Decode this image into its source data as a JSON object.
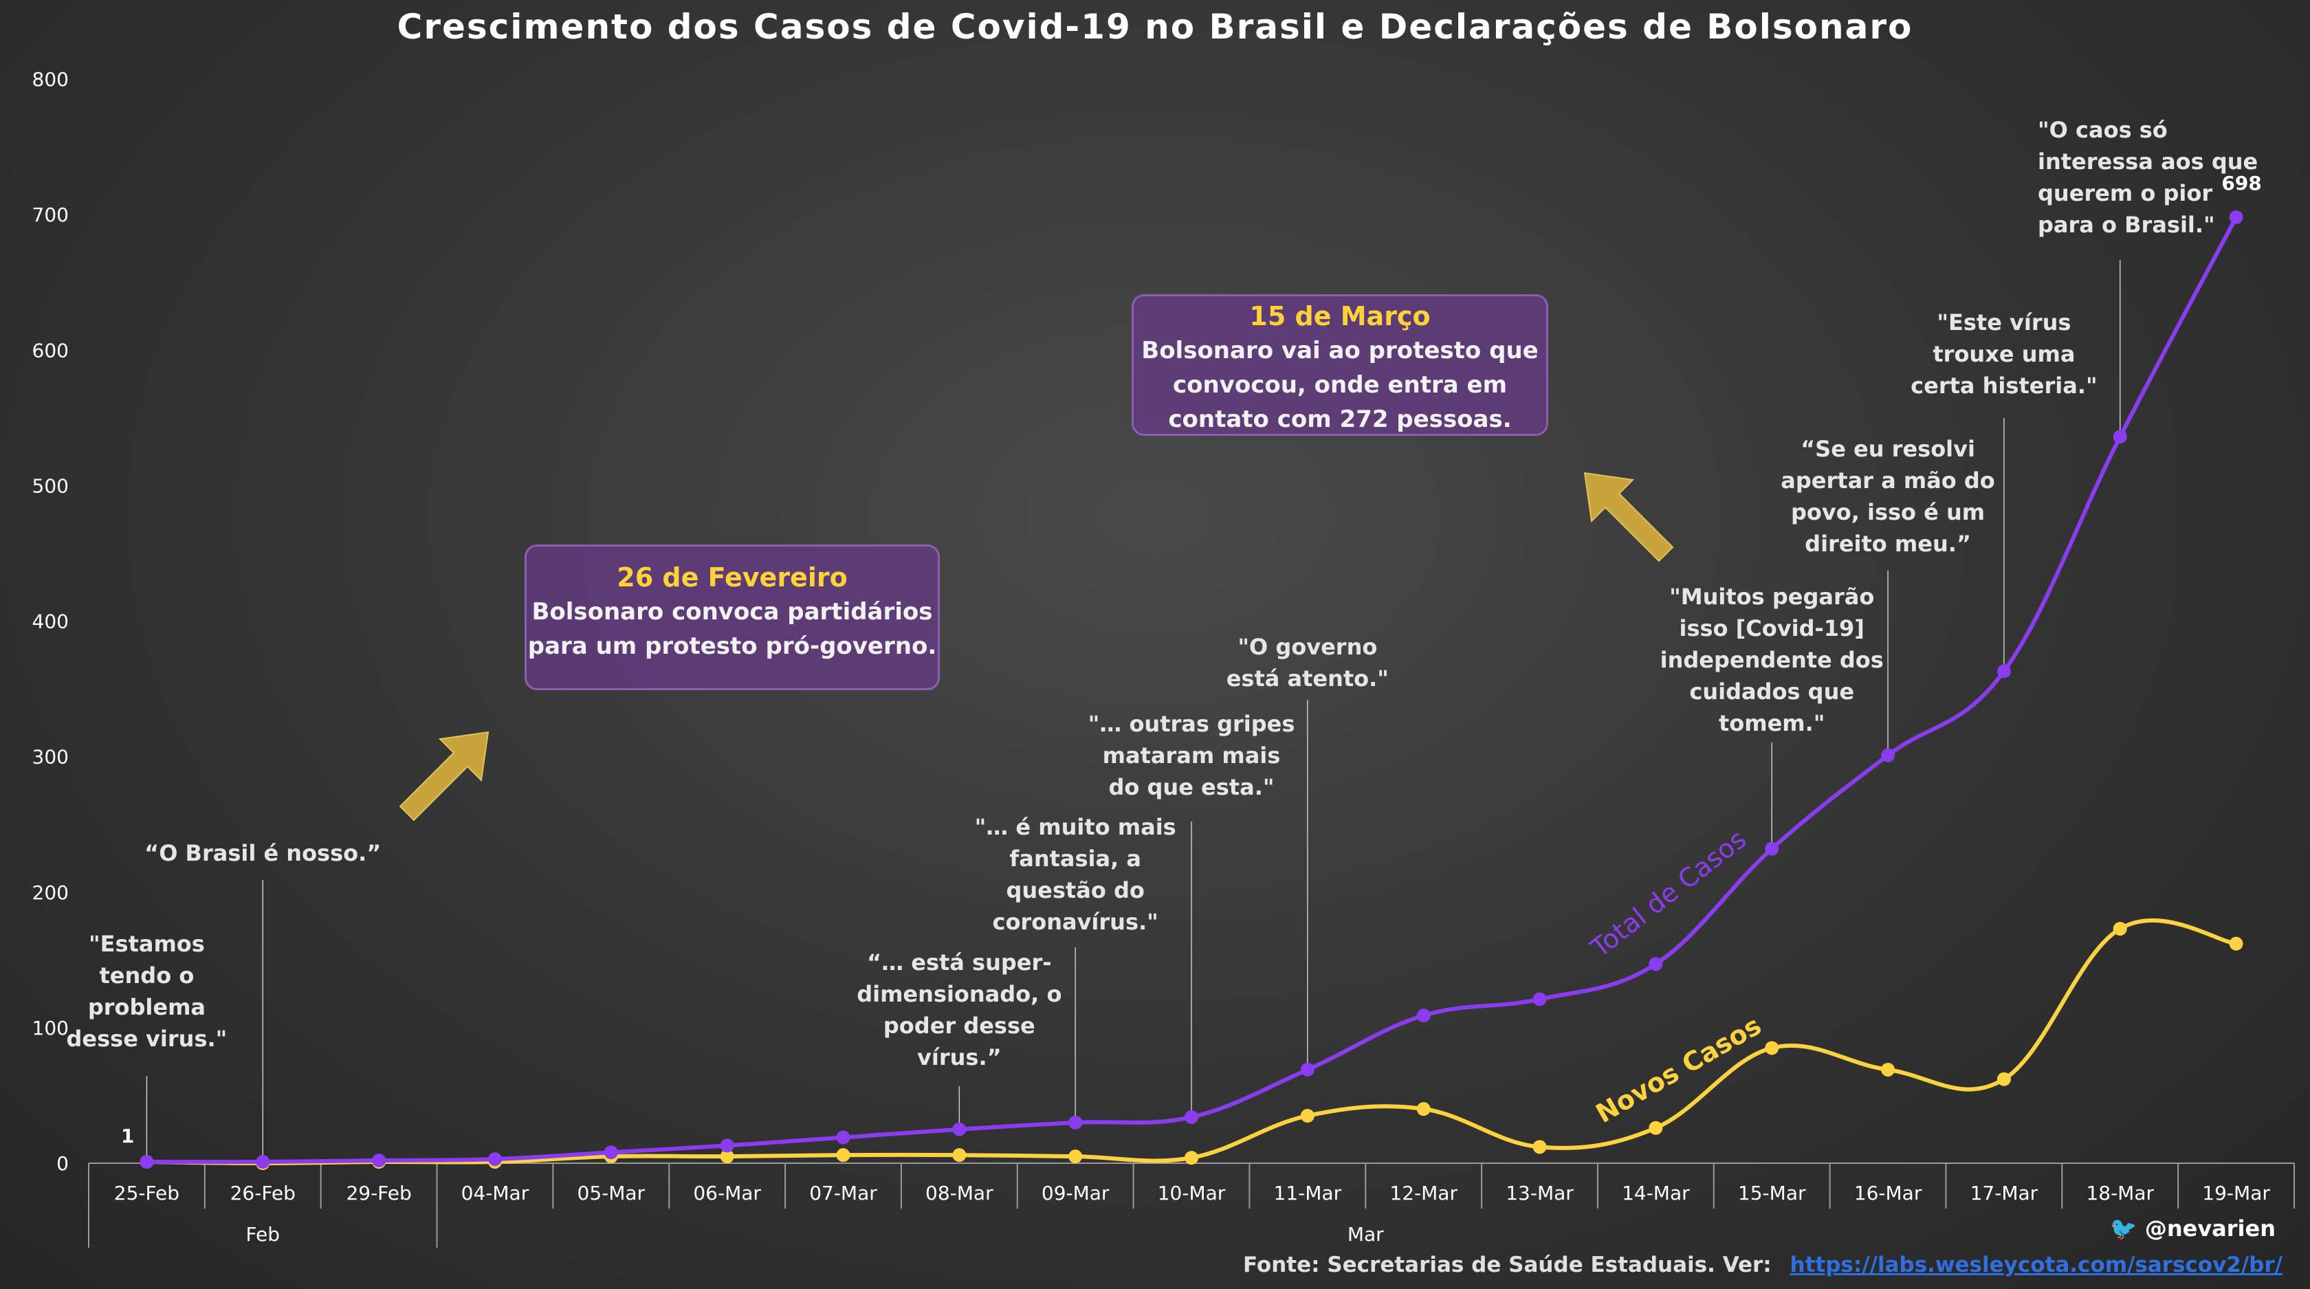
{
  "title": "Crescimento dos Casos de Covid-19 no Brasil e Declarações de Bolsonaro",
  "chart_data": {
    "type": "line",
    "categories": [
      "25-Feb",
      "26-Feb",
      "29-Feb",
      "04-Mar",
      "05-Mar",
      "06-Mar",
      "07-Mar",
      "08-Mar",
      "09-Mar",
      "10-Mar",
      "11-Mar",
      "12-Mar",
      "13-Mar",
      "14-Mar",
      "15-Mar",
      "16-Mar",
      "17-Mar",
      "18-Mar",
      "19-Mar"
    ],
    "month_labels": [
      "Feb",
      "Mar"
    ],
    "yticks": [
      "0",
      "100",
      "200",
      "300",
      "400",
      "500",
      "600",
      "700",
      "800"
    ],
    "ylim": [
      0,
      800
    ],
    "series": [
      {
        "name": "Total de Casos",
        "color": "#8a3cf0",
        "values": [
          1,
          1,
          2,
          3,
          8,
          13,
          19,
          25,
          30,
          34,
          69,
          109,
          121,
          147,
          232,
          301,
          363,
          536,
          698
        ]
      },
      {
        "name": "Novos Casos",
        "color": "#ffd23f",
        "values": [
          1,
          0,
          1,
          1,
          5,
          5,
          6,
          6,
          5,
          4,
          35,
          40,
          12,
          26,
          85,
          69,
          62,
          173,
          162
        ]
      }
    ],
    "data_labels": [
      {
        "series": 0,
        "index": 0,
        "text": "1"
      },
      {
        "series": 0,
        "index": 18,
        "text": "698"
      }
    ],
    "quotes": [
      {
        "index": 0,
        "text": "\"Estamos\ntendo o\nproblema\ndesse virus.\""
      },
      {
        "index": 1,
        "text": "“O Brasil é nosso.”"
      },
      {
        "index": 7,
        "text": "“… está super-\ndimensionado, o\npoder desse\nvírus.”"
      },
      {
        "index": 8,
        "text": "\"… é muito mais\nfantasia, a\nquestão do\ncoronavírus.\""
      },
      {
        "index": 9,
        "text": "\"… outras gripes\nmataram mais\ndo que esta.\""
      },
      {
        "index": 10,
        "text": "\"O governo\nestá atento.\""
      },
      {
        "index": 14,
        "text": "\"Muitos pegarão\nisso [Covid-19]\nindependente dos\ncuidados que\ntomem.\""
      },
      {
        "index": 15,
        "text": "“Se eu resolvi\napertar a mão do\npovo, isso é um\ndireito meu.”"
      },
      {
        "index": 16,
        "text": "\"Este vírus\ntrouxe uma\ncerta histeria.\""
      },
      {
        "index": 17,
        "text": "\"O caos só\ninteressa aos que\nquerem o pior\npara o Brasil.\""
      }
    ],
    "grid": false,
    "legend": "inline labels on lines"
  },
  "callouts": [
    {
      "title": "26 de Fevereiro",
      "body": "Bolsonaro convoca partidários\npara um protesto pró-governo."
    },
    {
      "title": "15 de Março",
      "body": "Bolsonaro vai ao protesto que\nconvocou, onde entra em\ncontato com 272 pessoas."
    }
  ],
  "footer": {
    "twitter_icon": "twitter-bird-icon",
    "handle": "@nevarien",
    "source_label": "Fonte: Secretarias de Saúde Estaduais. Ver:",
    "source_link": "https://labs.wesleycota.com/sarscov2/br/"
  }
}
